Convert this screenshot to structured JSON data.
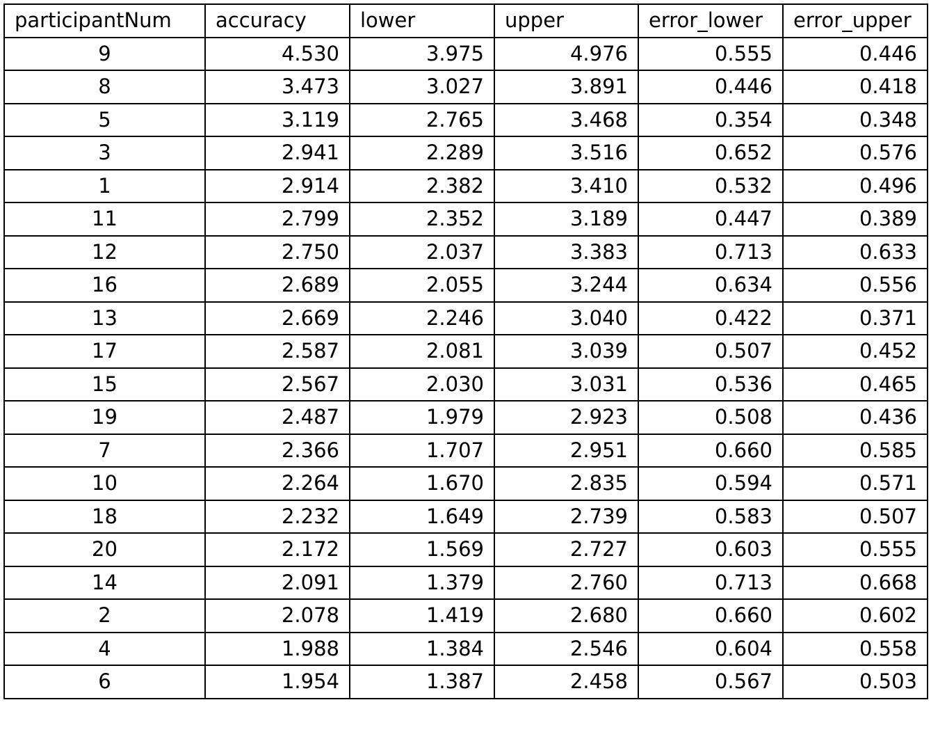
{
  "table": {
    "columns": [
      "participantNum",
      "accuracy",
      "lower",
      "upper",
      "error_lower",
      "error_upper"
    ],
    "rows": [
      [
        "9",
        "4.530",
        "3.975",
        "4.976",
        "0.555",
        "0.446"
      ],
      [
        "8",
        "3.473",
        "3.027",
        "3.891",
        "0.446",
        "0.418"
      ],
      [
        "5",
        "3.119",
        "2.765",
        "3.468",
        "0.354",
        "0.348"
      ],
      [
        "3",
        "2.941",
        "2.289",
        "3.516",
        "0.652",
        "0.576"
      ],
      [
        "1",
        "2.914",
        "2.382",
        "3.410",
        "0.532",
        "0.496"
      ],
      [
        "11",
        "2.799",
        "2.352",
        "3.189",
        "0.447",
        "0.389"
      ],
      [
        "12",
        "2.750",
        "2.037",
        "3.383",
        "0.713",
        "0.633"
      ],
      [
        "16",
        "2.689",
        "2.055",
        "3.244",
        "0.634",
        "0.556"
      ],
      [
        "13",
        "2.669",
        "2.246",
        "3.040",
        "0.422",
        "0.371"
      ],
      [
        "17",
        "2.587",
        "2.081",
        "3.039",
        "0.507",
        "0.452"
      ],
      [
        "15",
        "2.567",
        "2.030",
        "3.031",
        "0.536",
        "0.465"
      ],
      [
        "19",
        "2.487",
        "1.979",
        "2.923",
        "0.508",
        "0.436"
      ],
      [
        "7",
        "2.366",
        "1.707",
        "2.951",
        "0.660",
        "0.585"
      ],
      [
        "10",
        "2.264",
        "1.670",
        "2.835",
        "0.594",
        "0.571"
      ],
      [
        "18",
        "2.232",
        "1.649",
        "2.739",
        "0.583",
        "0.507"
      ],
      [
        "20",
        "2.172",
        "1.569",
        "2.727",
        "0.603",
        "0.555"
      ],
      [
        "14",
        "2.091",
        "1.379",
        "2.760",
        "0.713",
        "0.668"
      ],
      [
        "2",
        "2.078",
        "1.419",
        "2.680",
        "0.660",
        "0.602"
      ],
      [
        "4",
        "1.988",
        "1.384",
        "2.546",
        "0.604",
        "0.558"
      ],
      [
        "6",
        "1.954",
        "1.387",
        "2.458",
        "0.567",
        "0.503"
      ]
    ]
  }
}
